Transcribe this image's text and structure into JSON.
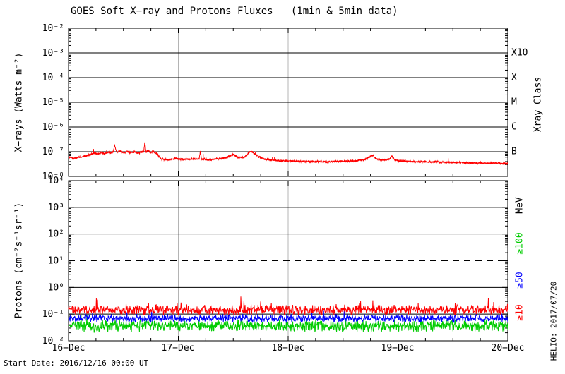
{
  "title": "GOES Soft X−ray and Protons Fluxes   (1min & 5min data)",
  "footer": {
    "start_date_label": "Start Date: 2016/12/16 00:00 UT",
    "credit": "HELIO: 2017/07/20"
  },
  "colors": {
    "xray_trace": "#ff0000",
    "proton_ge10": "#ff0000",
    "proton_ge50": "#0000ff",
    "proton_ge100": "#00cc00",
    "day_gridline": "#b4b4b4",
    "axis": "#000000",
    "background": "#ffffff"
  },
  "chart_data": [
    {
      "type": "line",
      "name": "goes-soft-xray-panel",
      "ylabel": "X−rays (Watts m⁻²)",
      "right_axis_title": "Xray Class",
      "ylim_log10": [
        -8,
        -2
      ],
      "grid": "horizontal-decades-solid, vertical-day-gray",
      "y_ticks": [
        {
          "label": "10⁻²",
          "log": -2
        },
        {
          "label": "10⁻³",
          "log": -3
        },
        {
          "label": "10⁻⁴",
          "log": -4
        },
        {
          "label": "10⁻⁵",
          "log": -5
        },
        {
          "label": "10⁻⁶",
          "log": -6
        },
        {
          "label": "10⁻⁷",
          "log": -7
        },
        {
          "label": "10⁻⁸",
          "log": -8
        }
      ],
      "class_bands": [
        {
          "label": "B",
          "log": -7
        },
        {
          "label": "C",
          "log": -6
        },
        {
          "label": "M",
          "log": -5
        },
        {
          "label": "X",
          "log": -4
        },
        {
          "label": "X10",
          "log": -3
        }
      ],
      "x_axis": {
        "labels": [
          "16−Dec",
          "17−Dec",
          "18−Dec",
          "19−Dec",
          "20−Dec"
        ],
        "span_days": 4,
        "minor_tick_hours": 6
      },
      "series": [
        {
          "name": "xray-long-flux",
          "cadence": "1min",
          "color": "#ff0000",
          "jitter_dex": 0.05,
          "anchors_day_log10flux": [
            [
              0.0,
              -7.22
            ],
            [
              0.06,
              -7.27
            ],
            [
              0.12,
              -7.2
            ],
            [
              0.17,
              -7.15
            ],
            [
              0.21,
              -7.1
            ],
            [
              0.24,
              -7.04
            ],
            [
              0.27,
              -7.1
            ],
            [
              0.3,
              -7.03
            ],
            [
              0.33,
              -7.08
            ],
            [
              0.36,
              -7.02
            ],
            [
              0.39,
              -7.06
            ],
            [
              0.41,
              -6.98
            ],
            [
              0.42,
              -6.72
            ],
            [
              0.435,
              -6.98
            ],
            [
              0.45,
              -7.03
            ],
            [
              0.47,
              -6.97
            ],
            [
              0.5,
              -7.04
            ],
            [
              0.53,
              -6.99
            ],
            [
              0.56,
              -7.05
            ],
            [
              0.6,
              -7.0
            ],
            [
              0.63,
              -7.06
            ],
            [
              0.66,
              -7.02
            ],
            [
              0.685,
              -7.0
            ],
            [
              0.695,
              -6.6
            ],
            [
              0.705,
              -7.02
            ],
            [
              0.73,
              -6.95
            ],
            [
              0.75,
              -7.06
            ],
            [
              0.77,
              -6.97
            ],
            [
              0.79,
              -7.05
            ],
            [
              0.81,
              -7.1
            ],
            [
              0.84,
              -7.3
            ],
            [
              0.9,
              -7.32
            ],
            [
              0.97,
              -7.28
            ],
            [
              1.05,
              -7.31
            ],
            [
              1.13,
              -7.28
            ],
            [
              1.19,
              -7.3
            ],
            [
              1.2,
              -6.97
            ],
            [
              1.21,
              -7.3
            ],
            [
              1.28,
              -7.32
            ],
            [
              1.38,
              -7.28
            ],
            [
              1.46,
              -7.2
            ],
            [
              1.5,
              -7.1
            ],
            [
              1.54,
              -7.22
            ],
            [
              1.6,
              -7.24
            ],
            [
              1.64,
              -7.05
            ],
            [
              1.665,
              -6.97
            ],
            [
              1.69,
              -7.08
            ],
            [
              1.73,
              -7.2
            ],
            [
              1.8,
              -7.32
            ],
            [
              1.9,
              -7.36
            ],
            [
              2.05,
              -7.38
            ],
            [
              2.2,
              -7.4
            ],
            [
              2.35,
              -7.41
            ],
            [
              2.5,
              -7.38
            ],
            [
              2.62,
              -7.36
            ],
            [
              2.7,
              -7.32
            ],
            [
              2.77,
              -7.14
            ],
            [
              2.8,
              -7.28
            ],
            [
              2.85,
              -7.34
            ],
            [
              2.92,
              -7.3
            ],
            [
              2.95,
              -7.18
            ],
            [
              2.97,
              -7.34
            ],
            [
              3.05,
              -7.38
            ],
            [
              3.15,
              -7.4
            ],
            [
              3.3,
              -7.41
            ],
            [
              3.5,
              -7.43
            ],
            [
              3.7,
              -7.45
            ],
            [
              3.85,
              -7.46
            ],
            [
              4.0,
              -7.48
            ]
          ]
        }
      ]
    },
    {
      "type": "line",
      "name": "goes-protons-panel",
      "ylabel": "Protons (cm⁻²s⁻¹sr⁻¹)",
      "right_axis_title": "MeV",
      "ylim_log10": [
        -2,
        4
      ],
      "grid": "horizontal-decades-solid, vertical-day-gray",
      "threshold_line": {
        "log": 1,
        "style": "dashed"
      },
      "y_ticks": [
        {
          "label": "10⁴",
          "log": 4
        },
        {
          "label": "10³",
          "log": 3
        },
        {
          "label": "10²",
          "log": 2
        },
        {
          "label": "10¹",
          "log": 1
        },
        {
          "label": "10⁰",
          "log": 0
        },
        {
          "label": "10⁻¹",
          "log": -1
        },
        {
          "label": "10⁻²",
          "log": -2
        }
      ],
      "x_axis": {
        "labels": [
          "16−Dec",
          "17−Dec",
          "18−Dec",
          "19−Dec",
          "20−Dec"
        ],
        "span_days": 4,
        "minor_tick_hours": 6
      },
      "series": [
        {
          "name": "protons-ge10MeV",
          "label": "≥10",
          "color": "#ff0000",
          "cadence": "5min",
          "base_log": -0.84,
          "band_dex": 0.22,
          "spike_rate": 0.02,
          "spike_dex": 0.25,
          "points": 1152
        },
        {
          "name": "protons-ge50MeV",
          "label": "≥50",
          "color": "#0000ff",
          "cadence": "5min",
          "base_log": -1.16,
          "band_dex": 0.17,
          "spike_rate": 0.008,
          "spike_dex": 0.15,
          "points": 1152
        },
        {
          "name": "protons-ge100MeV",
          "label": "≥100",
          "color": "#00cc00",
          "cadence": "5min",
          "base_log": -1.44,
          "band_dex": 0.26,
          "spike_rate": 0.008,
          "spike_dex": 0.18,
          "points": 1152
        }
      ]
    }
  ]
}
